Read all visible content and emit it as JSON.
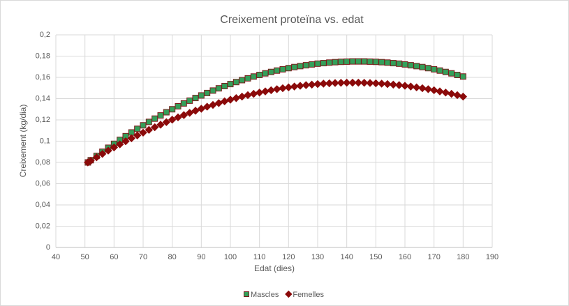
{
  "chart_data": {
    "type": "scatter",
    "title": "Creixement proteïna vs. edat",
    "xlabel": "Edat (dies)",
    "ylabel": "Creixement (kg/dia)",
    "x": [
      51,
      52,
      54,
      56,
      58,
      60,
      62,
      64,
      66,
      68,
      70,
      72,
      74,
      76,
      78,
      80,
      82,
      84,
      86,
      88,
      90,
      92,
      94,
      96,
      98,
      100,
      102,
      104,
      106,
      108,
      110,
      112,
      114,
      116,
      118,
      120,
      122,
      124,
      126,
      128,
      130,
      132,
      134,
      136,
      138,
      140,
      142,
      144,
      146,
      148,
      150,
      152,
      154,
      156,
      158,
      160,
      162,
      164,
      166,
      168,
      170,
      172,
      174,
      176,
      178,
      180
    ],
    "series": [
      {
        "name": "Mascles",
        "color": "#33a05a",
        "edgecolor": "#7b1c1c",
        "marker": "square",
        "values": [
          0.08,
          0.0821,
          0.0861,
          0.09,
          0.0938,
          0.0975,
          0.1012,
          0.1047,
          0.1082,
          0.1116,
          0.1149,
          0.1181,
          0.1212,
          0.1242,
          0.1272,
          0.13,
          0.1328,
          0.1355,
          0.1381,
          0.1406,
          0.143,
          0.1453,
          0.1476,
          0.1497,
          0.1518,
          0.1537,
          0.1556,
          0.1574,
          0.1591,
          0.1608,
          0.1623,
          0.1638,
          0.1651,
          0.1664,
          0.1676,
          0.1687,
          0.1697,
          0.1706,
          0.1714,
          0.1722,
          0.1729,
          0.1734,
          0.1739,
          0.1743,
          0.1746,
          0.1748,
          0.175,
          0.175,
          0.175,
          0.1748,
          0.1746,
          0.1743,
          0.1739,
          0.1734,
          0.1729,
          0.1722,
          0.1714,
          0.1706,
          0.1697,
          0.1687,
          0.1676,
          0.1664,
          0.1651,
          0.1638,
          0.1623,
          0.1608
        ]
      },
      {
        "name": "Femelles",
        "color": "#8b0a0a",
        "edgecolor": "#8b0a0a",
        "marker": "diamond",
        "values": [
          0.08,
          0.0816,
          0.0848,
          0.088,
          0.0911,
          0.0941,
          0.097,
          0.0999,
          0.1027,
          0.1054,
          0.108,
          0.1106,
          0.1131,
          0.1155,
          0.1179,
          0.1202,
          0.1224,
          0.1245,
          0.1266,
          0.1286,
          0.1305,
          0.1324,
          0.1341,
          0.1358,
          0.1375,
          0.139,
          0.1405,
          0.1419,
          0.1433,
          0.1445,
          0.1457,
          0.1468,
          0.1479,
          0.1489,
          0.1498,
          0.1506,
          0.1514,
          0.1521,
          0.1527,
          0.1532,
          0.1537,
          0.1541,
          0.1544,
          0.1547,
          0.1549,
          0.155,
          0.155,
          0.155,
          0.1549,
          0.1547,
          0.1544,
          0.1541,
          0.1537,
          0.1532,
          0.1527,
          0.1521,
          0.1514,
          0.1506,
          0.1498,
          0.1489,
          0.1479,
          0.1468,
          0.1457,
          0.1445,
          0.1433,
          0.1419
        ]
      }
    ],
    "xlim": [
      40,
      190
    ],
    "xticks": [
      40,
      50,
      60,
      70,
      80,
      90,
      100,
      110,
      120,
      130,
      140,
      150,
      160,
      170,
      180,
      190
    ],
    "ylim": [
      0,
      0.2
    ],
    "yticks": [
      0,
      {
        "value": 0.02,
        "label": "0,02"
      },
      {
        "value": 0.04,
        "label": "0,04"
      },
      {
        "value": 0.06,
        "label": "0,06"
      },
      {
        "value": 0.08,
        "label": "0,08"
      },
      {
        "value": 0.1,
        "label": "0,1"
      },
      {
        "value": 0.12,
        "label": "0,12"
      },
      {
        "value": 0.14,
        "label": "0,14"
      },
      {
        "value": 0.16,
        "label": "0,16"
      },
      {
        "value": 0.18,
        "label": "0,18"
      },
      {
        "value": 0.2,
        "label": "0,2"
      }
    ],
    "grid": true,
    "legend": "bottom"
  }
}
